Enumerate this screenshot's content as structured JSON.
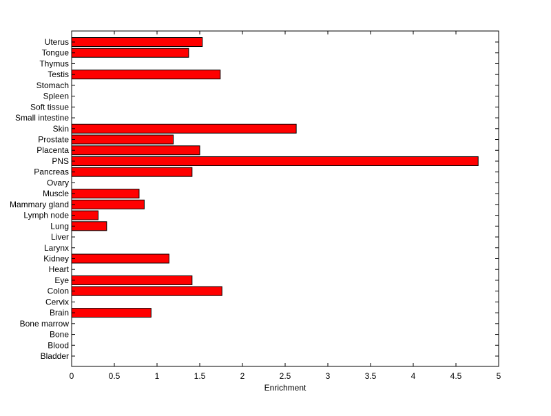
{
  "chart_data": {
    "type": "bar",
    "orientation": "horizontal",
    "title": "",
    "xlabel": "Enrichment",
    "ylabel": "",
    "xlim": [
      0,
      5
    ],
    "xticks": [
      "0",
      "0.5",
      "1",
      "1.5",
      "2",
      "2.5",
      "3",
      "3.5",
      "4",
      "4.5",
      "5"
    ],
    "grid": false,
    "bar_color": "#ff0000",
    "categories": [
      "Bladder",
      "Blood",
      "Bone",
      "Bone marrow",
      "Brain",
      "Cervix",
      "Colon",
      "Eye",
      "Heart",
      "Kidney",
      "Larynx",
      "Liver",
      "Lung",
      "Lymph node",
      "Mammary gland",
      "Muscle",
      "Ovary",
      "Pancreas",
      "PNS",
      "Placenta",
      "Prostate",
      "Skin",
      "Small intestine",
      "Soft tissue",
      "Spleen",
      "Stomach",
      "Testis",
      "Thymus",
      "Tongue",
      "Uterus"
    ],
    "values": [
      0,
      0,
      0,
      0,
      0.93,
      0,
      1.76,
      1.41,
      0,
      1.14,
      0,
      0,
      0.41,
      0.31,
      0.85,
      0.79,
      0,
      1.41,
      4.76,
      1.5,
      1.19,
      2.63,
      0,
      0,
      0,
      0,
      1.74,
      0,
      1.37,
      1.53
    ]
  }
}
